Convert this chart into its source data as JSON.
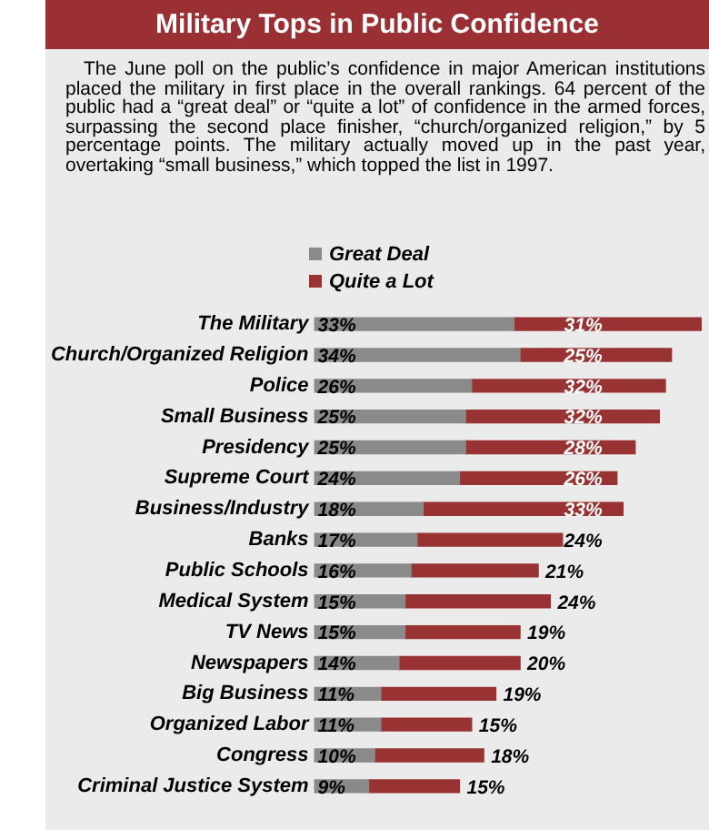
{
  "chart_data": {
    "type": "bar",
    "title": "Military Tops in Public Confidence",
    "subtitle": "The June poll on the public’s confidence in major American institutions placed the military in first place in the overall rankings. 64 percent of the public had a “great deal” or “quite a lot” of confidence in the armed forces, surpassing the second place finisher, “church/organized religion,” by 5 percentage points. The military actually moved up in the past year, overtaking “small business,” which topped the list in 1997.",
    "categories": [
      "The Military",
      "Church/Organized Religion",
      "Police",
      "Small Business",
      "Presidency",
      "Supreme Court",
      "Business/Industry",
      "Banks",
      "Public Schools",
      "Medical System",
      "TV News",
      "Newspapers",
      "Big Business",
      "Organized Labor",
      "Congress",
      "Criminal Justice System"
    ],
    "series": [
      {
        "name": "Great Deal",
        "color": "#8a8a8a",
        "values": [
          33,
          34,
          26,
          25,
          25,
          24,
          18,
          17,
          16,
          15,
          15,
          14,
          11,
          11,
          10,
          9
        ],
        "value_labels": [
          "33%",
          "34%",
          "26%",
          "25%",
          "25%",
          "24%",
          "18%",
          "17%",
          "16%",
          "15%",
          "15%",
          "14%",
          "11%",
          "11%",
          "10%",
          "9%"
        ]
      },
      {
        "name": "Quite a Lot",
        "color": "#993333",
        "values": [
          31,
          25,
          32,
          32,
          28,
          26,
          33,
          24,
          21,
          24,
          19,
          20,
          19,
          15,
          18,
          15
        ],
        "value_labels": [
          "31%",
          "25%",
          "32%",
          "32%",
          "28%",
          "26%",
          "33%",
          "24%",
          "21%",
          "24%",
          "19%",
          "20%",
          "19%",
          "15%",
          "18%",
          "15%"
        ]
      }
    ],
    "stacked": true,
    "orientation": "horizontal",
    "xlim": [
      0,
      64
    ],
    "tick_labels": "y",
    "legend": "top"
  }
}
